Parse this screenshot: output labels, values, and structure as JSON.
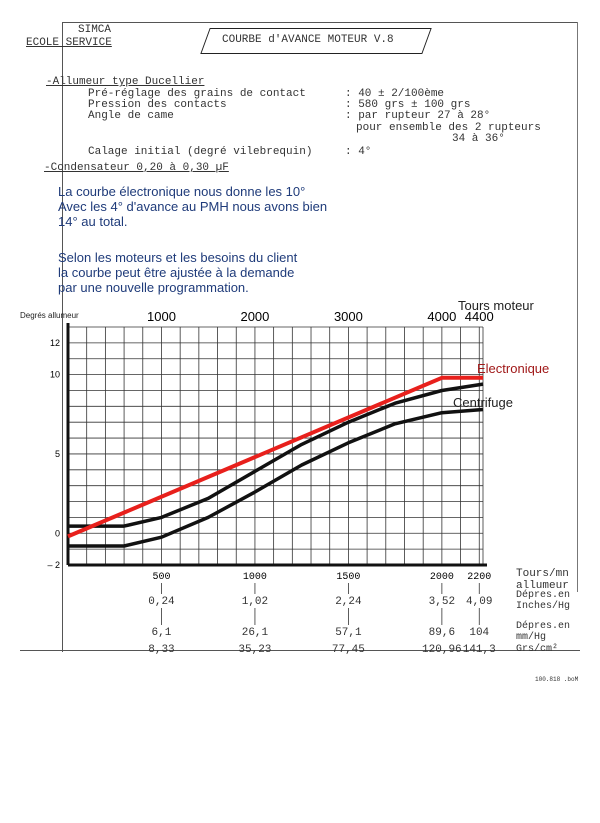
{
  "header": {
    "org_line1": "SIMCA",
    "org_line2": "ECOLE SERVICE",
    "title": "COURBE d'AVANCE MOTEUR  V.8"
  },
  "specs": {
    "heading": "-Allumeur type Ducellier",
    "rows": [
      {
        "label": "Pré-réglage des grains de contact",
        "value": ": 40 ± 2/100ème"
      },
      {
        "label": "Pression des contacts",
        "value": ": 580 grs ± 100 grs"
      },
      {
        "label": "Angle de came",
        "value": ": par rupteur  27 à 28°"
      },
      {
        "label": "",
        "value": "pour ensemble des 2 rupteurs"
      },
      {
        "label": "",
        "value": "34 à 36°"
      },
      {
        "label": "Calage initial (degré vilebrequin)",
        "value": ": 4°"
      }
    ],
    "condensateur": "-Condensateur 0,20 à 0,30 µF"
  },
  "notes": {
    "para1": [
      "La courbe électronique nous donne les 10°",
      "Avec les 4° d'avance au PMH nous avons bien",
      "14° au total."
    ],
    "para2": [
      "Selon les moteurs et les besoins du client",
      "la courbe peut être ajustée à la demande",
      "par une nouvelle programmation."
    ]
  },
  "chart_data": {
    "type": "line",
    "ylabel": "Degrés allumeur",
    "x_top_label": "Tours moteur",
    "x_bottom_label": "Tours/mn allumeur",
    "xlim": [
      0,
      4440
    ],
    "ylim": [
      -2,
      13
    ],
    "grid": true,
    "grid_step_x": 200,
    "grid_step_y": 1,
    "y_ticks": [
      12,
      10,
      5,
      0,
      -2
    ],
    "y_tick_labels": [
      "12",
      "10",
      "5",
      "0",
      "– 2"
    ],
    "x_top_ticks": [
      "1000",
      "2000",
      "3000",
      "4000",
      "4400"
    ],
    "x_bottom_ticks": [
      "500",
      "1000",
      "1500",
      "2000",
      "2200"
    ],
    "series": [
      {
        "name": "Electronique",
        "color": "#e8201c",
        "x": [
          0,
          4000,
          4440
        ],
        "y": [
          -0.2,
          9.8,
          9.8
        ]
      },
      {
        "name": "Centrifuge",
        "color": "#111111",
        "x": [
          0,
          600,
          1000,
          1500,
          2000,
          2500,
          3000,
          3500,
          4000,
          4440
        ],
        "y": [
          0.45,
          0.45,
          1.0,
          2.2,
          3.9,
          5.6,
          7.0,
          8.2,
          9.0,
          9.4
        ]
      },
      {
        "name": "",
        "color": "#111111",
        "x": [
          0,
          600,
          1000,
          1500,
          2000,
          2500,
          3000,
          3500,
          4000,
          4440
        ],
        "y": [
          -0.8,
          -0.8,
          -0.25,
          1.0,
          2.6,
          4.3,
          5.7,
          6.9,
          7.6,
          7.8
        ]
      }
    ],
    "label_colors": {
      "electronique": "#a01818",
      "centrifuge": "#111111"
    }
  },
  "table": {
    "columns_rpm": [
      "500",
      "1000",
      "1500",
      "2000",
      "2200"
    ],
    "rows": [
      {
        "label": [
          "Dépres.en",
          "Inches/Hg"
        ],
        "values": [
          "0,24",
          "1,02",
          "2,24",
          "3,52",
          "4,09"
        ]
      },
      {
        "label": [
          "Dépres.en",
          "mm/Hg"
        ],
        "values": [
          "6,1",
          "26,1",
          "57,1",
          "89,6",
          "104"
        ]
      },
      {
        "label": [
          "Grs/cm²"
        ],
        "values": [
          "8,33",
          "35,23",
          "77,45",
          "120,96",
          "141,3"
        ]
      }
    ]
  },
  "footer": {
    "code": "100.818 .boM"
  }
}
